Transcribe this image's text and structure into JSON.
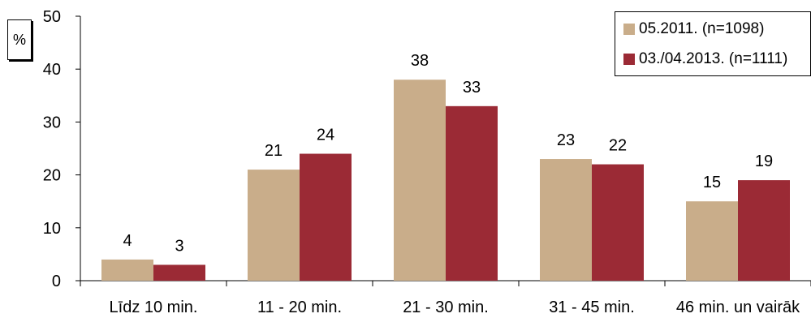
{
  "chart_data": {
    "type": "bar",
    "unit_label": "%",
    "categories": [
      "Līdz 10 min.",
      "11 - 20 min.",
      "21 - 30 min.",
      "31 - 45 min.",
      "46 min. un vairāk"
    ],
    "series": [
      {
        "name": "05.2011. (n=1098)",
        "values": [
          4,
          21,
          38,
          23,
          15
        ],
        "labels": [
          "4",
          "21",
          "38",
          "23",
          "15"
        ],
        "color": "#c9ad8a"
      },
      {
        "name": "03./04.2013. (n=1111)",
        "values": [
          3,
          24,
          33,
          22,
          19
        ],
        "labels": [
          "3",
          "24",
          "33",
          "22",
          "19"
        ],
        "color": "#9b2a35"
      }
    ],
    "y_ticks": [
      "0",
      "10",
      "20",
      "30",
      "40",
      "50"
    ],
    "ylim": [
      0,
      50
    ],
    "grid": false,
    "legend_position": "top-right"
  }
}
